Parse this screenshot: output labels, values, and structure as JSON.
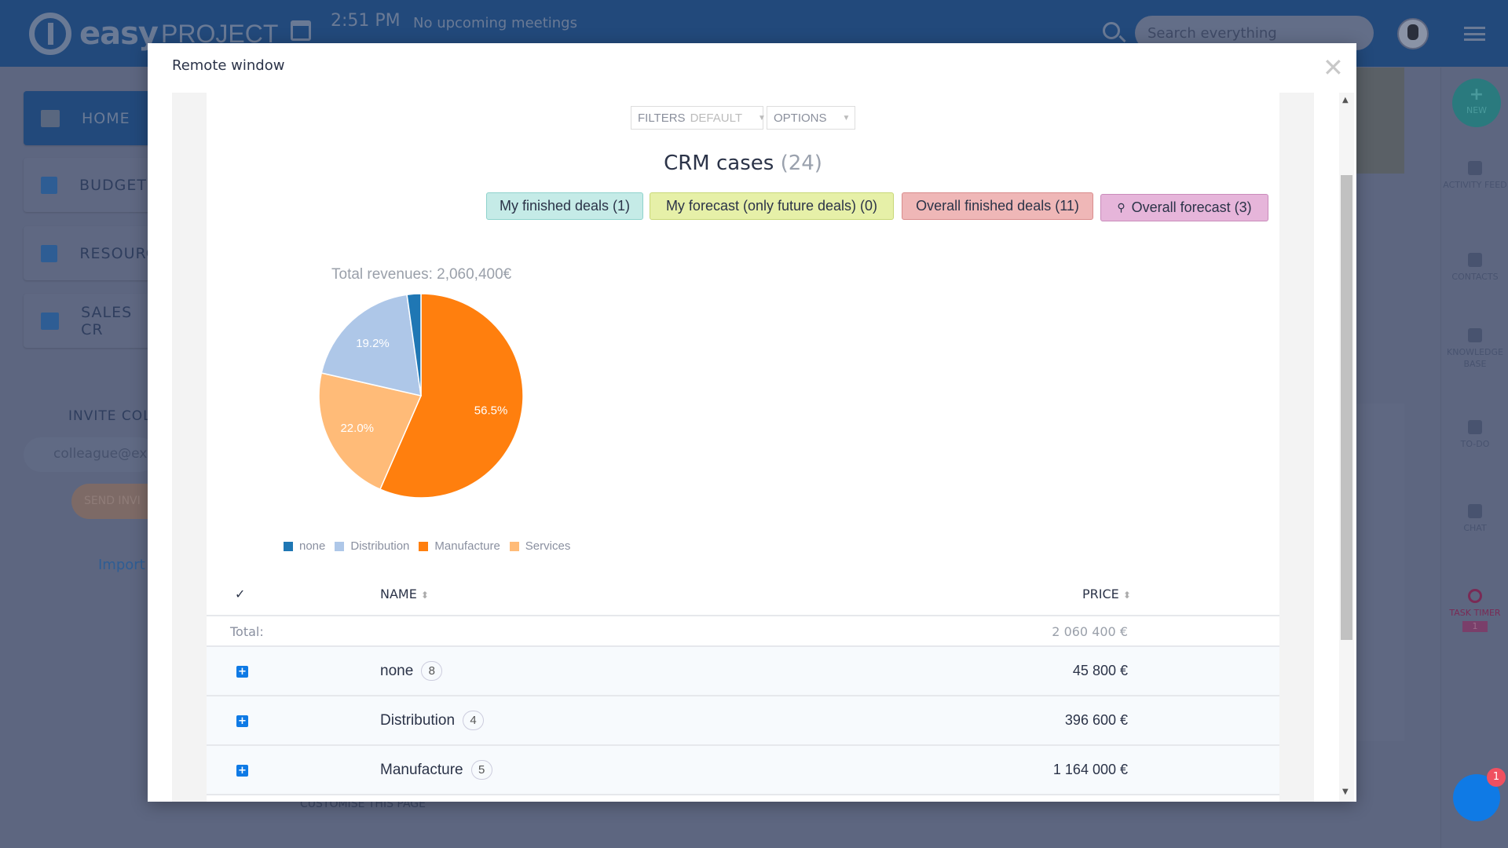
{
  "header": {
    "logo": "easy",
    "logo_sub": "PROJECT",
    "time": "2:51 PM",
    "meetings": "No upcoming meetings",
    "search_placeholder": "Search everything"
  },
  "sidebar": {
    "items": [
      {
        "label": "HOME",
        "active": true
      },
      {
        "label": "BUDGETS"
      },
      {
        "label": "RESOURC"
      },
      {
        "label": "SALES CR"
      }
    ],
    "invite_label": "INVITE COLL",
    "email_placeholder": "colleague@ex",
    "send_label": "SEND INVI",
    "import_label": "Import"
  },
  "footer": {
    "customise": "CUSTOMISE THIS PAGE"
  },
  "rail": {
    "new": "NEW",
    "items": [
      "ACTIVITY FEED",
      "CONTACTS",
      "KNOWLEDGE BASE",
      "TO-DO",
      "CHAT",
      "TASK TIMER"
    ],
    "timer_count": "1",
    "chat_badge": "1"
  },
  "modal": {
    "title": "Remote window",
    "filters": {
      "label": "FILTERS",
      "value": "DEFAULT",
      "options": "OPTIONS"
    },
    "heading": "CRM cases",
    "count": "(24)",
    "badges": [
      {
        "label": "My finished deals (1)",
        "bg": "#c5ebe7",
        "border": "#8fd3cc"
      },
      {
        "label": "My forecast (only future deals) (0)",
        "bg": "#e6f0a8",
        "border": "#c8d878"
      },
      {
        "label": "Overall finished deals (11)",
        "bg": "#efb7b7",
        "border": "#d98c8c"
      },
      {
        "label": "Overall forecast (3)",
        "bg": "#e6b5da",
        "border": "#c98bbb",
        "icon": "user-icon"
      }
    ],
    "table": {
      "headers": {
        "name": "NAME",
        "price": "PRICE"
      },
      "total_label": "Total:",
      "total_value": "2 060 400 €",
      "rows": [
        {
          "name": "none",
          "count": "8",
          "price": "45 800 €"
        },
        {
          "name": "Distribution",
          "count": "4",
          "price": "396 600 €"
        },
        {
          "name": "Manufacture",
          "count": "5",
          "price": "1 164 000 €"
        }
      ]
    }
  },
  "chart_data": {
    "type": "pie",
    "title": "Total revenues: 2,060,400€",
    "legend_position": "bottom",
    "categories": [
      "none",
      "Distribution",
      "Manufacture",
      "Services"
    ],
    "values": [
      2.2,
      19.2,
      56.5,
      22.0
    ],
    "labels": [
      "",
      "19.2%",
      "56.5%",
      "22.0%"
    ],
    "colors": [
      "#1f77b4",
      "#aec7e8",
      "#ff7f0e",
      "#ffbb78"
    ]
  }
}
